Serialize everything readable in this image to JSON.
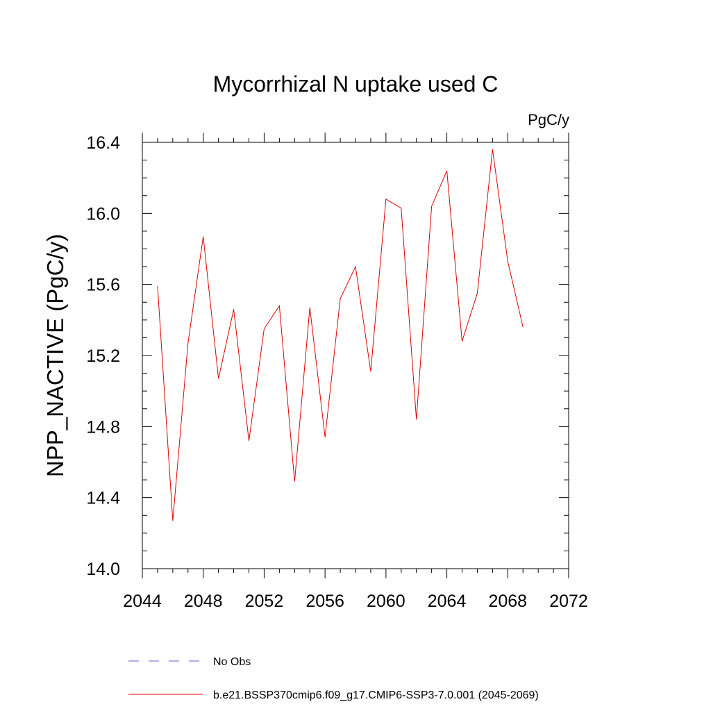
{
  "chart_data": {
    "type": "line",
    "title": "Mycorrhizal N uptake used C",
    "units_label": "PgC/y",
    "ylabel": "NPP_NACTIVE  (PgC/y)",
    "xlabel": "",
    "xlim": [
      2044,
      2072
    ],
    "ylim": [
      14.0,
      16.4
    ],
    "x_ticks": [
      2044,
      2048,
      2052,
      2056,
      2060,
      2064,
      2068,
      2072
    ],
    "x_tick_labels": [
      "2044",
      "2048",
      "2052",
      "2056",
      "2060",
      "2064",
      "2068",
      "2072"
    ],
    "y_ticks": [
      14.0,
      14.4,
      14.8,
      15.2,
      15.6,
      16.0,
      16.4
    ],
    "y_tick_labels": [
      "14.0",
      "14.4",
      "14.8",
      "15.2",
      "15.6",
      "16.0",
      "16.4"
    ],
    "grid": false,
    "legend_position": "bottom",
    "series": [
      {
        "name": "b.e21.BSSP370cmip6.f09_g17.CMIP6-SSP3-7.0.001 (2045-2069)",
        "color": "#e00000",
        "style": "solid",
        "x": [
          2045,
          2046,
          2047,
          2048,
          2049,
          2050,
          2051,
          2052,
          2053,
          2054,
          2055,
          2056,
          2057,
          2058,
          2059,
          2060,
          2061,
          2062,
          2063,
          2064,
          2065,
          2066,
          2067,
          2068,
          2069
        ],
        "values": [
          15.59,
          14.27,
          15.27,
          15.87,
          15.07,
          15.46,
          14.72,
          15.35,
          15.48,
          14.49,
          15.47,
          14.74,
          15.52,
          15.7,
          15.11,
          16.08,
          16.03,
          14.84,
          16.04,
          16.24,
          15.28,
          15.55,
          16.36,
          15.73,
          15.36
        ]
      }
    ],
    "legend": [
      {
        "label": "No Obs",
        "color": "#6a5acd",
        "style": "dashed"
      },
      {
        "label": "b.e21.BSSP370cmip6.f09_g17.CMIP6-SSP3-7.0.001 (2045-2069)",
        "color": "#e00000",
        "style": "solid"
      }
    ]
  }
}
